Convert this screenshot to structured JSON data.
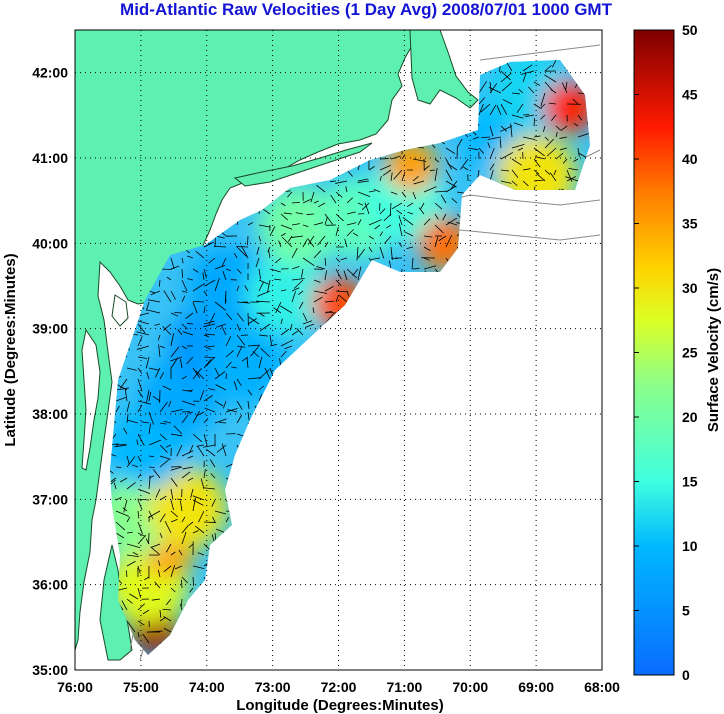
{
  "title": "Mid-Atlantic Raw Velocities (1 Day Avg) 2008/07/01 1000 GMT",
  "map": {
    "xlabel": "Longitude (Degrees:Minutes)",
    "ylabel": "Latitude (Degrees:Minutes)",
    "x_ticks": [
      "76:00",
      "75:00",
      "74:00",
      "73:00",
      "72:00",
      "71:00",
      "70:00",
      "69:00",
      "68:00"
    ],
    "y_ticks": [
      "35:00",
      "36:00",
      "37:00",
      "38:00",
      "39:00",
      "40:00",
      "41:00",
      "42:00"
    ],
    "lon_range": [
      -76,
      -68
    ],
    "lat_range": [
      35,
      42.5
    ],
    "land_color": "#5ef0b0",
    "grid": "dotted"
  },
  "colorbar": {
    "label": "Surface Velocity (cm/s)",
    "ticks": [
      "0",
      "5",
      "10",
      "15",
      "20",
      "25",
      "30",
      "35",
      "40",
      "45",
      "50"
    ],
    "range": [
      0,
      50
    ],
    "colormap": "jet"
  },
  "chart_data": {
    "type": "heatmap",
    "title": "Mid-Atlantic Raw Velocities (1 Day Avg) 2008/07/01 1000 GMT",
    "xlabel": "Longitude (Degrees:Minutes)",
    "ylabel": "Latitude (Degrees:Minutes)",
    "xlim": [
      -76,
      -68
    ],
    "ylim": [
      35,
      42.5
    ],
    "clim": [
      0,
      50
    ],
    "colorbar_label": "Surface Velocity (cm/s)",
    "regions": [
      {
        "lon": -74.8,
        "lat": 35.5,
        "speed": 48
      },
      {
        "lon": -74.9,
        "lat": 36.0,
        "speed": 28
      },
      {
        "lon": -74.6,
        "lat": 36.4,
        "speed": 35
      },
      {
        "lon": -75.1,
        "lat": 36.8,
        "speed": 22
      },
      {
        "lon": -74.3,
        "lat": 36.9,
        "speed": 30
      },
      {
        "lon": -74.9,
        "lat": 37.6,
        "speed": 10
      },
      {
        "lon": -74.4,
        "lat": 38.2,
        "speed": 8
      },
      {
        "lon": -74.0,
        "lat": 38.8,
        "speed": 6
      },
      {
        "lon": -73.4,
        "lat": 38.6,
        "speed": 9
      },
      {
        "lon": -73.7,
        "lat": 39.5,
        "speed": 8
      },
      {
        "lon": -72.8,
        "lat": 39.4,
        "speed": 14
      },
      {
        "lon": -72.0,
        "lat": 39.3,
        "speed": 40
      },
      {
        "lon": -72.6,
        "lat": 40.2,
        "speed": 20
      },
      {
        "lon": -71.7,
        "lat": 40.3,
        "speed": 18
      },
      {
        "lon": -71.0,
        "lat": 40.5,
        "speed": 15
      },
      {
        "lon": -70.9,
        "lat": 40.9,
        "speed": 35
      },
      {
        "lon": -70.4,
        "lat": 40.0,
        "speed": 38
      },
      {
        "lon": -69.5,
        "lat": 41.2,
        "speed": 10
      },
      {
        "lon": -69.1,
        "lat": 41.8,
        "speed": 12
      },
      {
        "lon": -68.5,
        "lat": 41.6,
        "speed": 42
      },
      {
        "lon": -69.0,
        "lat": 40.8,
        "speed": 30
      }
    ]
  }
}
